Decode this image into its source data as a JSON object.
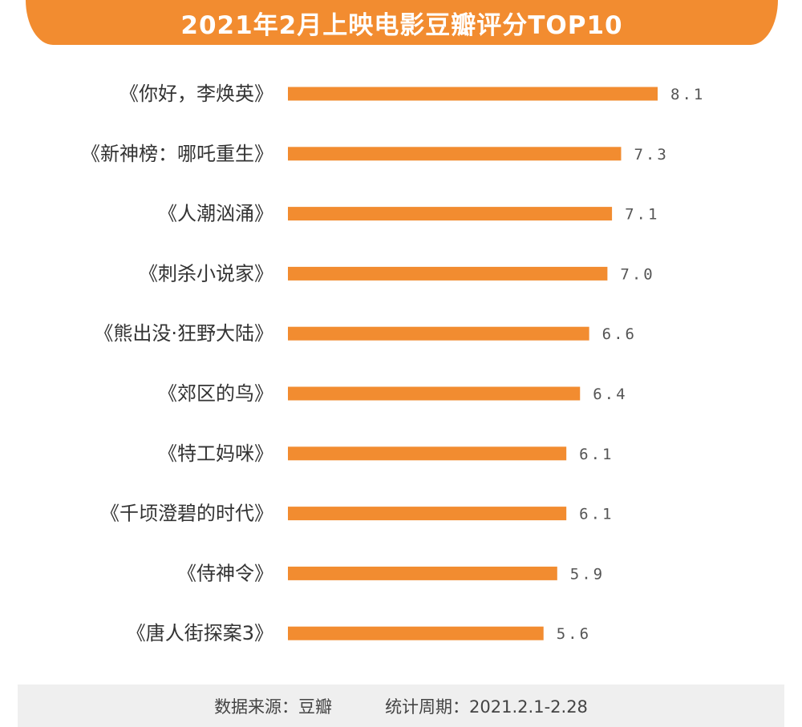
{
  "title": "2021年2月上映电影豆瓣评分TOP10",
  "colors": {
    "accent": "#F28C30",
    "label": "#333333",
    "value": "#555555",
    "footer_bg": "#EFEFEF"
  },
  "chart_data": {
    "type": "bar",
    "orientation": "horizontal",
    "title": "2021年2月上映电影豆瓣评分TOP10",
    "categories": [
      "《你好，李焕英》",
      "《新神榜：哪吒重生》",
      "《人潮汹涌》",
      "《刺杀小说家》",
      "《熊出没·狂野大陆》",
      "《郊区的鸟》",
      "《特工妈咪》",
      "《千顷澄碧的时代》",
      "《侍神令》",
      "《唐人街探案3》"
    ],
    "values": [
      8.1,
      7.3,
      7.1,
      7.0,
      6.6,
      6.4,
      6.1,
      6.1,
      5.9,
      5.6
    ],
    "value_labels": [
      "8.1",
      "7.3",
      "7.1",
      "7.0",
      "6.6",
      "6.4",
      "6.1",
      "6.1",
      "5.9",
      "5.6"
    ],
    "xlim": [
      0,
      8.1
    ],
    "grid": false,
    "legend": "none"
  },
  "footer": {
    "source": "数据来源：豆瓣",
    "period": "统计周期：2021.2.1-2.28"
  }
}
